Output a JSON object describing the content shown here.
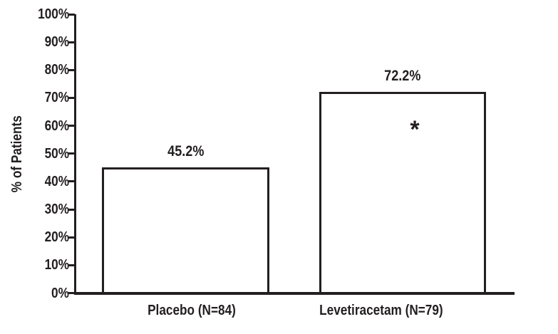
{
  "figure": {
    "background_color": "#ffffff",
    "ink_color": "#231f20"
  },
  "chart_data": {
    "type": "bar",
    "title": "",
    "xlabel": "",
    "ylabel": "% of Patients",
    "categories": [
      "Placebo (N=84)",
      "Levetiracetam (N=79)"
    ],
    "values": [
      45.2,
      72.2
    ],
    "value_labels": [
      "45.2%",
      "72.2%"
    ],
    "ylim": [
      0,
      100
    ],
    "ytick_interval": 10,
    "ytick_labels": [
      "0%",
      "10%",
      "20%",
      "30%",
      "40%",
      "50%",
      "60%",
      "70%",
      "80%",
      "90%",
      "100%"
    ],
    "grid": false,
    "legend": "none",
    "bar_fill": "#ffffff",
    "bar_border_color": "#231f20",
    "annotations": [
      {
        "text": "*",
        "category": "Levetiracetam (N=79)",
        "y_percent": 60
      }
    ]
  }
}
